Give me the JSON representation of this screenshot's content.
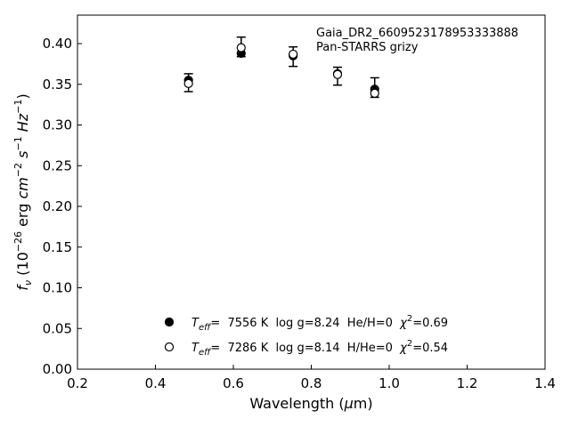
{
  "chart_data": {
    "type": "scatter",
    "annotation": {
      "line1": "Gaia_DR2_6609523178953333888",
      "line2": "Pan-STARRS grizy"
    },
    "xlabel": "Wavelength (μm)",
    "ylabel": "fν (10⁻²⁶ erg cm⁻² s⁻¹ Hz⁻¹)",
    "xlim": [
      0.2,
      1.4
    ],
    "ylim": [
      0.0,
      0.435
    ],
    "xticks": [
      0.2,
      0.4,
      0.6,
      0.8,
      1.0,
      1.2,
      1.4
    ],
    "yticks": [
      0.0,
      0.05,
      0.1,
      0.15,
      0.2,
      0.25,
      0.3,
      0.35,
      0.4
    ],
    "xtick_labels": [
      "0.2",
      "0.4",
      "0.6",
      "0.8",
      "1.0",
      "1.2",
      "1.4"
    ],
    "ytick_labels": [
      "0.00",
      "0.05",
      "0.10",
      "0.15",
      "0.20",
      "0.25",
      "0.30",
      "0.35",
      "0.40"
    ],
    "grid": false,
    "legend_placement": "lower-center",
    "observed": {
      "x": [
        0.4849,
        0.6201,
        0.7535,
        0.8674,
        0.9628
      ],
      "y": [
        0.352,
        0.396,
        0.384,
        0.36,
        0.346
      ],
      "yerr": [
        0.011,
        0.012,
        0.012,
        0.011,
        0.012
      ]
    },
    "series": [
      {
        "name": "Teff=  7556 K  log g=8.24  He/H=0  χ²=0.69",
        "marker": "filled-circle",
        "x": [
          0.4849,
          0.6201,
          0.7535,
          0.8674,
          0.9628
        ],
        "y": [
          0.355,
          0.388,
          0.385,
          0.363,
          0.344
        ]
      },
      {
        "name": "Teff=  7286 K  log g=8.14  H/He=0  χ²=0.54",
        "marker": "open-circle",
        "x": [
          0.4849,
          0.6201,
          0.7535,
          0.8674,
          0.9628
        ],
        "y": [
          0.351,
          0.395,
          0.387,
          0.362,
          0.339
        ]
      }
    ],
    "legend": [
      {
        "teff_sym": "T",
        "teff_sub": "eff",
        "eq_text": "=  7556 K  log g=8.24  He/H=0  ",
        "chi_sym": "χ",
        "chi_sup": "2",
        "chi_val": "=0.69"
      },
      {
        "teff_sym": "T",
        "teff_sub": "eff",
        "eq_text": "=  7286 K  log g=8.14  H/He=0  ",
        "chi_sym": "χ",
        "chi_sup": "2",
        "chi_val": "=0.54"
      }
    ],
    "colors": {
      "marker": "#000000",
      "axes": "#000000",
      "background": "#ffffff"
    }
  }
}
